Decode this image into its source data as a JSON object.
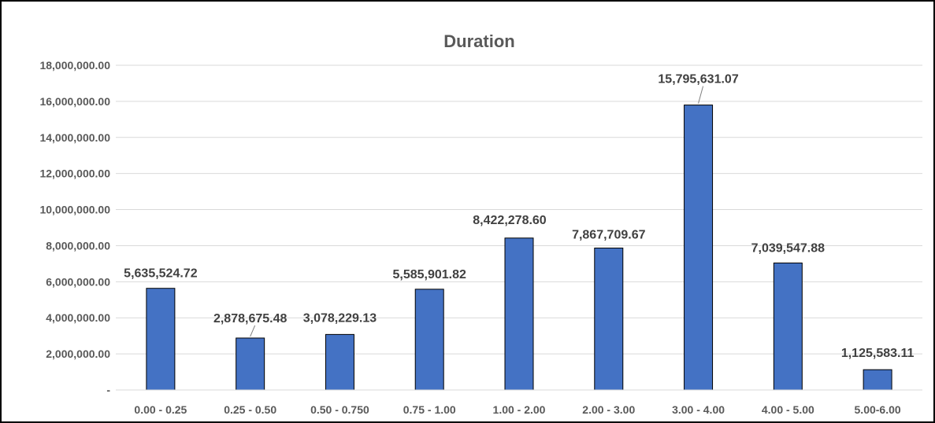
{
  "chart_data": {
    "type": "bar",
    "title": "Duration",
    "xlabel": "",
    "ylabel": "",
    "categories": [
      "0.00 - 0.25",
      "0.25 - 0.50",
      "0.50 - 0.750",
      "0.75 - 1.00",
      "1.00 - 2.00",
      "2.00 - 3.00",
      "3.00 - 4.00",
      "4.00 - 5.00",
      "5.00-6.00"
    ],
    "values": [
      5635524.72,
      2878675.48,
      3078229.13,
      5585901.82,
      8422278.6,
      7867709.67,
      15795631.07,
      7039547.88,
      1125583.11
    ],
    "data_labels": [
      "5,635,524.72",
      "2,878,675.48",
      "3,078,229.13",
      "5,585,901.82",
      "8,422,278.60",
      "7,867,709.67",
      "15,795,631.07",
      "7,039,547.88",
      "1,125,583.11"
    ],
    "ylim": [
      0,
      18000000
    ],
    "yticks": [
      0,
      2000000,
      4000000,
      6000000,
      8000000,
      10000000,
      12000000,
      14000000,
      16000000,
      18000000
    ],
    "ytick_labels": [
      "-",
      "2,000,000.00",
      "4,000,000.00",
      "6,000,000.00",
      "8,000,000.00",
      "10,000,000.00",
      "12,000,000.00",
      "14,000,000.00",
      "16,000,000.00",
      "18,000,000.00"
    ],
    "grid": true,
    "legend": "none",
    "bar_color": "#4472C4",
    "bar_edge_color": "#000000",
    "grid_color": "#D9D9D9"
  }
}
